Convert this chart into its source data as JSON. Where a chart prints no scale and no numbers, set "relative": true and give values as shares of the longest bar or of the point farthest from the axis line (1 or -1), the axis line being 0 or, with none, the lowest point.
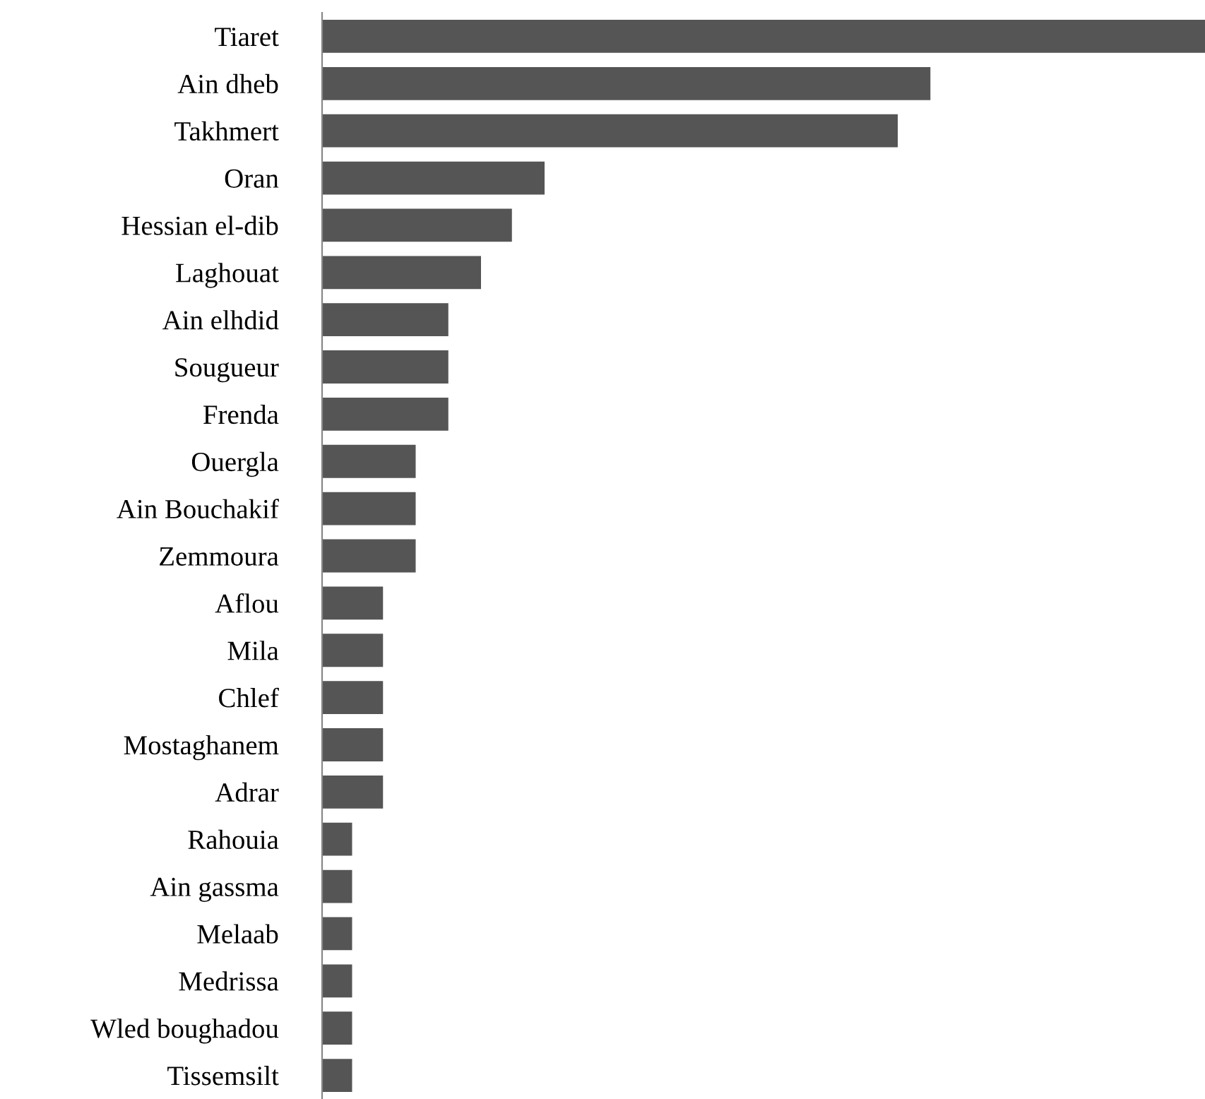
{
  "chart_data": {
    "type": "bar",
    "orientation": "horizontal",
    "relative": true,
    "categories": [
      "Tiaret",
      "Ain dheb",
      "Takhmert",
      "Oran",
      "Hessian el-dib",
      "Laghouat",
      "Ain elhdid",
      "Sougueur",
      "Frenda",
      "Ouergla",
      "Ain Bouchakif",
      "Zemmoura",
      "Aflou",
      "Mila",
      "Chlef",
      "Mostaghanem",
      "Adrar",
      "Rahouia",
      "Ain gassma",
      "Melaab",
      "Medrissa",
      "Wled boughadou",
      "Tissemsilt"
    ],
    "values": [
      1,
      0.689,
      0.652,
      0.252,
      0.215,
      0.18,
      0.143,
      0.143,
      0.143,
      0.106,
      0.106,
      0.106,
      0.069,
      0.069,
      0.069,
      0.069,
      0.069,
      0.034,
      0.034,
      0.034,
      0.034,
      0.034,
      0.034
    ],
    "color": "#555555",
    "grid": false,
    "legend": false
  }
}
